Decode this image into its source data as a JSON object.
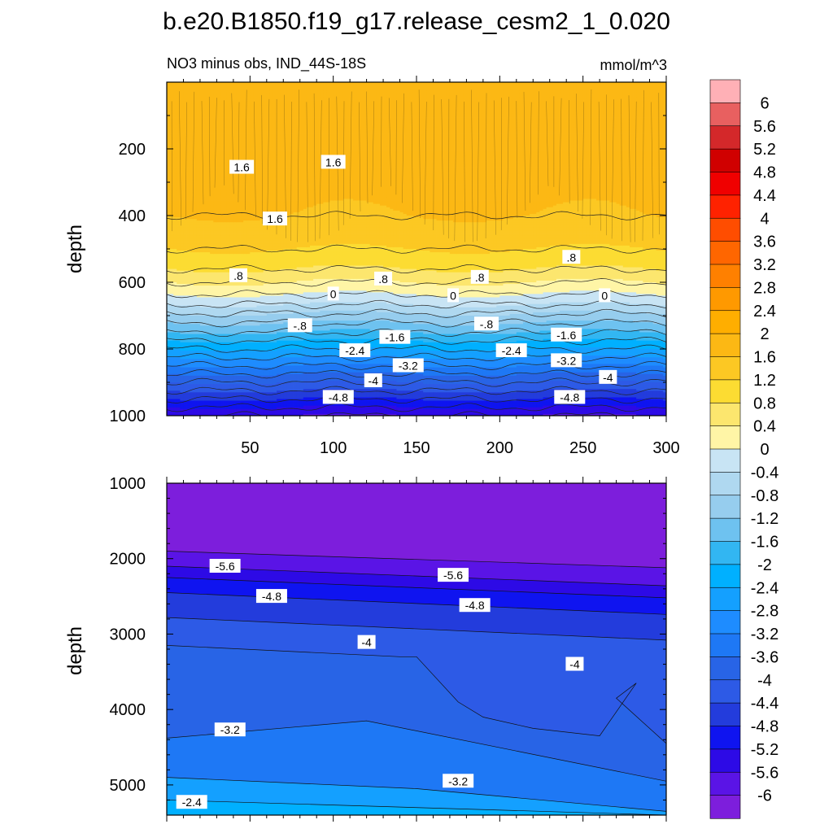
{
  "figure": {
    "title": "b.e20.B1850.f19_g17.release_cesm2_1_0.020"
  },
  "chart_data": [
    {
      "type": "heatmap",
      "subtype": "filled-contour",
      "left_title": "NO3 minus obs, IND_44S-18S",
      "right_title": "mmol/m^3",
      "ylabel": "depth",
      "xlabel": "",
      "xlim": [
        0,
        300
      ],
      "ylim": [
        1000,
        0
      ],
      "y_inverted": true,
      "xticks": [
        "50",
        "100",
        "150",
        "200",
        "250",
        "300"
      ],
      "yticks": [
        "200",
        "400",
        "600",
        "800",
        "1000"
      ],
      "x_tick_values": [
        50,
        100,
        150,
        200,
        250,
        300
      ],
      "y_tick_values": [
        200,
        400,
        600,
        800,
        1000
      ],
      "contour_levels": [
        -6,
        -5.6,
        -5.2,
        -4.8,
        -4.4,
        -4,
        -3.6,
        -3.2,
        -2.8,
        -2.4,
        -2,
        -1.6,
        -1.2,
        -0.8,
        -0.4,
        0,
        0.4,
        0.8,
        1.2,
        1.6,
        2
      ],
      "depth_profile": {
        "depth": [
          0,
          100,
          200,
          300,
          400,
          480,
          540,
          580,
          620,
          660,
          700,
          750,
          800,
          850,
          900,
          950,
          1000
        ],
        "value": [
          1.7,
          1.8,
          1.7,
          1.75,
          1.6,
          1.3,
          1.0,
          0.6,
          0.2,
          -0.3,
          -0.9,
          -1.6,
          -2.4,
          -3.2,
          -4.0,
          -4.8,
          -5.6
        ]
      },
      "contour_labels": [
        {
          "text": "1.6",
          "x": 45,
          "depth": 255
        },
        {
          "text": "1.6",
          "x": 100,
          "depth": 240
        },
        {
          "text": "1.6",
          "x": 65,
          "depth": 410
        },
        {
          "text": ".8",
          "x": 43,
          "depth": 580
        },
        {
          "text": ".8",
          "x": 130,
          "depth": 590
        },
        {
          "text": ".8",
          "x": 188,
          "depth": 585
        },
        {
          "text": ".8",
          "x": 243,
          "depth": 525
        },
        {
          "text": "0",
          "x": 100,
          "depth": 635
        },
        {
          "text": "0",
          "x": 172,
          "depth": 640
        },
        {
          "text": "0",
          "x": 263,
          "depth": 640
        },
        {
          "text": "-.8",
          "x": 80,
          "depth": 730
        },
        {
          "text": "-.8",
          "x": 192,
          "depth": 725
        },
        {
          "text": "-1.6",
          "x": 137,
          "depth": 765
        },
        {
          "text": "-1.6",
          "x": 240,
          "depth": 758
        },
        {
          "text": "-2.4",
          "x": 113,
          "depth": 805
        },
        {
          "text": "-2.4",
          "x": 207,
          "depth": 805
        },
        {
          "text": "-3.2",
          "x": 145,
          "depth": 850
        },
        {
          "text": "-3.2",
          "x": 240,
          "depth": 835
        },
        {
          "text": "-4",
          "x": 124,
          "depth": 895
        },
        {
          "text": "-4",
          "x": 265,
          "depth": 885
        },
        {
          "text": "-4.8",
          "x": 103,
          "depth": 945
        },
        {
          "text": "-4.8",
          "x": 242,
          "depth": 945
        }
      ]
    },
    {
      "type": "heatmap",
      "subtype": "filled-contour",
      "ylabel": "depth",
      "xlabel": "",
      "xlim": [
        0,
        300
      ],
      "ylim": [
        5400,
        1000
      ],
      "y_inverted": true,
      "xticks": [],
      "yticks": [
        "1000",
        "2000",
        "3000",
        "4000",
        "5000"
      ],
      "y_tick_values": [
        1000,
        2000,
        3000,
        4000,
        5000
      ],
      "contour_lines": [
        {
          "level": -6.0,
          "x": [
            0,
            300
          ],
          "depth": [
            1900,
            2120
          ]
        },
        {
          "level": -5.6,
          "x": [
            0,
            300
          ],
          "depth": [
            2100,
            2360
          ]
        },
        {
          "level": -5.2,
          "x": [
            0,
            300
          ],
          "depth": [
            2250,
            2520
          ]
        },
        {
          "level": -4.8,
          "x": [
            0,
            300
          ],
          "depth": [
            2450,
            2740
          ]
        },
        {
          "level": -4.4,
          "x": [
            0,
            300
          ],
          "depth": [
            2780,
            3080
          ]
        },
        {
          "level": -4.0,
          "x": [
            0,
            140,
            150,
            175,
            190,
            220,
            260,
            282,
            270,
            300
          ],
          "depth": [
            3150,
            3300,
            3300,
            3900,
            4100,
            4250,
            4350,
            3650,
            3850,
            4450
          ]
        },
        {
          "level": -3.6,
          "x": [
            0,
            120,
            300
          ],
          "depth": [
            4380,
            4150,
            4950
          ]
        },
        {
          "level": -3.2,
          "x": [
            0,
            150,
            300
          ],
          "depth": [
            4900,
            5050,
            5350
          ]
        }
      ],
      "contour_labels": [
        {
          "text": "-5.6",
          "x": 35,
          "depth": 2100
        },
        {
          "text": "-5.6",
          "x": 172,
          "depth": 2220
        },
        {
          "text": "-4.8",
          "x": 63,
          "depth": 2500
        },
        {
          "text": "-4.8",
          "x": 185,
          "depth": 2620
        },
        {
          "text": "-4",
          "x": 120,
          "depth": 3110
        },
        {
          "text": "-4",
          "x": 245,
          "depth": 3400
        },
        {
          "text": "-3.2",
          "x": 38,
          "depth": 4270
        },
        {
          "text": "-3.2",
          "x": 175,
          "depth": 4950
        },
        {
          "text": "-2.4",
          "x": 15,
          "depth": 5230
        }
      ]
    }
  ],
  "colorbar": {
    "orientation": "vertical",
    "labels": [
      "6",
      "5.6",
      "5.2",
      "4.8",
      "4.4",
      "4",
      "3.6",
      "3.2",
      "2.8",
      "2.4",
      "2",
      "1.6",
      "1.2",
      "0.8",
      "0.4",
      "0",
      "-0.4",
      "-0.8",
      "-1.2",
      "-1.6",
      "-2",
      "-2.4",
      "-2.8",
      "-3.2",
      "-3.6",
      "-4",
      "-4.4",
      "-4.8",
      "-5.2",
      "-5.6",
      "-6"
    ],
    "colors": [
      "#ffb0b6",
      "#e86060",
      "#d4282a",
      "#d00000",
      "#f00000",
      "#ff2200",
      "#ff4d00",
      "#ff6600",
      "#ff8000",
      "#ff9900",
      "#ffae00",
      "#fcb814",
      "#fcc823",
      "#fcdc32",
      "#fce66e",
      "#fff5a6",
      "#c8e4f4",
      "#afd8f0",
      "#96cdee",
      "#6ec2f0",
      "#32b6f2",
      "#00b0ff",
      "#14a0ff",
      "#1e8cff",
      "#1e78f5",
      "#2864e6",
      "#2d5ae6",
      "#233cdc",
      "#0f14f0",
      "#2d0ae6",
      "#5a14e6",
      "#7d1edc"
    ]
  }
}
